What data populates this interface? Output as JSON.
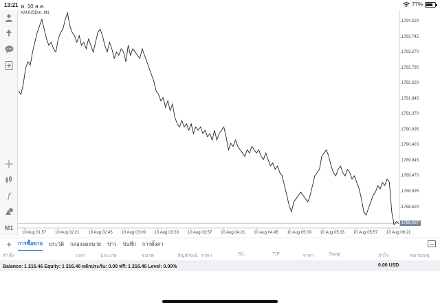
{
  "status_bar": {
    "time": "13:21",
    "date": "พ. 10 ส.ค.",
    "battery": "77%",
    "battery_level": 0.77
  },
  "toolbar": {
    "icons": [
      "account-icon",
      "trade-arrows-icon",
      "chat-icon",
      "new-order-icon",
      "crosshair-icon",
      "candles-icon",
      "indicator-icon",
      "objects-icon"
    ],
    "timeframe": "M1"
  },
  "chart": {
    "symbol_label": "XAUUSDm, M1",
    "current_price": "1788.037",
    "colors": {
      "line": "#222222",
      "grid": "#dddddd",
      "tag": "#7a8aa0"
    }
  },
  "chart_data": {
    "type": "line",
    "title": "XAUUSDm, M1",
    "xlabel": "",
    "ylabel": "",
    "x_ticks": [
      "10 Aug 01:57",
      "10 Aug 02:21",
      "10 Aug 02:45",
      "10 Aug 03:09",
      "10 Aug 03:33",
      "10 Aug 03:57",
      "10 Aug 04:21",
      "10 Aug 04:45",
      "10 Aug 05:09",
      "10 Aug 05:33",
      "10 Aug 05:57",
      "10 Aug 06:21"
    ],
    "y_ticks": [
      "1794.220",
      "1793.745",
      "1793.270",
      "1792.795",
      "1792.320",
      "1791.845",
      "1791.370",
      "1790.895",
      "1790.420",
      "1789.945",
      "1789.470",
      "1788.995",
      "1788.520"
    ],
    "ylim": [
      1787.9,
      1794.6
    ],
    "grid": false,
    "series": [
      {
        "values": [
          1792.1,
          1792.0,
          1792.3,
          1792.8,
          1793.0,
          1792.9,
          1793.3,
          1793.6,
          1793.9,
          1794.1,
          1794.3,
          1794.0,
          1793.7,
          1793.5,
          1793.6,
          1793.4,
          1793.3,
          1793.7,
          1793.9,
          1794.0,
          1794.3,
          1794.5,
          1794.1,
          1793.9,
          1793.8,
          1793.6,
          1793.8,
          1793.5,
          1793.6,
          1793.4,
          1793.7,
          1793.5,
          1793.3,
          1793.6,
          1793.9,
          1794.0,
          1793.8,
          1793.5,
          1793.3,
          1793.6,
          1793.4,
          1793.1,
          1793.3,
          1793.2,
          1793.4,
          1793.3,
          1793.0,
          1793.5,
          1793.2,
          1793.4,
          1793.3,
          1793.2,
          1793.1,
          1793.4,
          1793.2,
          1793.0,
          1792.8,
          1792.6,
          1792.4,
          1792.1,
          1792.0,
          1791.8,
          1791.9,
          1791.6,
          1791.8,
          1791.5,
          1791.7,
          1791.3,
          1791.1,
          1791.0,
          1791.2,
          1791.0,
          1791.1,
          1790.9,
          1791.1,
          1790.8,
          1791.0,
          1790.9,
          1791.0,
          1790.8,
          1790.9,
          1790.7,
          1790.8,
          1790.6,
          1790.9,
          1790.6,
          1790.8,
          1790.9,
          1791.0,
          1790.7,
          1790.3,
          1790.5,
          1790.4,
          1790.6,
          1790.4,
          1790.3,
          1790.2,
          1790.1,
          1790.3,
          1790.2,
          1790.4,
          1790.3,
          1790.2,
          1790.3,
          1790.1,
          1790.0,
          1790.2,
          1790.0,
          1789.8,
          1789.9,
          1789.7,
          1789.8,
          1789.6,
          1789.5,
          1789.2,
          1788.9,
          1788.6,
          1788.4,
          1788.7,
          1788.8,
          1788.9,
          1789.0,
          1788.9,
          1788.8,
          1788.7,
          1788.9,
          1789.2,
          1789.5,
          1789.6,
          1789.7,
          1790.1,
          1790.2,
          1790.3,
          1790.1,
          1789.8,
          1789.6,
          1789.5,
          1789.7,
          1789.8,
          1789.6,
          1789.5,
          1789.7,
          1789.6,
          1789.4,
          1789.5,
          1789.3,
          1789.1,
          1788.8,
          1788.4,
          1788.3,
          1788.5,
          1788.7,
          1788.9,
          1789.0,
          1789.2,
          1789.1,
          1789.3,
          1789.2,
          1789.4,
          1789.3,
          1788.4,
          1788.0,
          1788.1,
          1788.04
        ]
      }
    ]
  },
  "terminal": {
    "tabs": [
      "การซื้อขาย",
      "ประวัติ",
      "กล่องจดหมาย",
      "ข่าว",
      "บันทึก",
      "การตั้งค่า"
    ],
    "active_tab": 0,
    "columns": [
      "คำสั่ง",
      "เวลา",
      "ประเภท",
      "ขนาด",
      "สัญลักษณ์",
      "ราคา",
      "S/L",
      "T/P",
      "ราคา",
      "Swap",
      "กำไร",
      "หมายเหตุ"
    ],
    "balance_line": "Balance: 1 216.46 Equity: 1 216.46 หลักประกัน: 0.00 ฟรี: 1 216.46 Level: 0.00%",
    "profit_total": "0.00  USD"
  }
}
